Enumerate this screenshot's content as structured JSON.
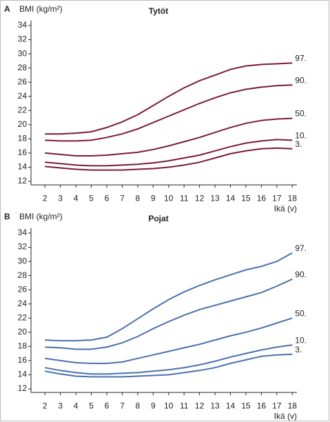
{
  "chart_data": [
    {
      "type": "line",
      "panel_label": "A",
      "title": "Tytöt",
      "ylabel": "BMI (kg/m²)",
      "xlabel": "Ikä (v)",
      "x": [
        2,
        3,
        4,
        5,
        6,
        7,
        8,
        9,
        10,
        11,
        12,
        13,
        14,
        15,
        16,
        17,
        18
      ],
      "xlim": [
        1.1,
        18.3
      ],
      "xticks": [
        2,
        3,
        4,
        5,
        6,
        7,
        8,
        9,
        10,
        11,
        12,
        13,
        14,
        15,
        16,
        17,
        18
      ],
      "ylim": [
        11.5,
        34.7
      ],
      "yticks": [
        12,
        14,
        16,
        18,
        20,
        22,
        24,
        26,
        28,
        30,
        32,
        34
      ],
      "grid": false,
      "series": [
        {
          "name": "97.",
          "color": "#7a1a33",
          "values": [
            18.7,
            18.7,
            18.8,
            19.0,
            19.6,
            20.4,
            21.4,
            22.7,
            24.0,
            25.2,
            26.2,
            27.0,
            27.8,
            28.3,
            28.5,
            28.6,
            28.7
          ]
        },
        {
          "name": "90.",
          "color": "#7a1a33",
          "values": [
            17.8,
            17.7,
            17.7,
            17.8,
            18.2,
            18.7,
            19.4,
            20.3,
            21.2,
            22.1,
            23.0,
            23.8,
            24.5,
            25.0,
            25.3,
            25.5,
            25.6
          ]
        },
        {
          "name": "50.",
          "color": "#7a1a33",
          "values": [
            16.0,
            15.8,
            15.6,
            15.6,
            15.7,
            15.9,
            16.1,
            16.5,
            17.0,
            17.6,
            18.2,
            18.9,
            19.6,
            20.2,
            20.6,
            20.8,
            20.9
          ]
        },
        {
          "name": "10.",
          "color": "#7a1a33",
          "values": [
            14.7,
            14.5,
            14.3,
            14.2,
            14.2,
            14.3,
            14.4,
            14.6,
            14.9,
            15.3,
            15.7,
            16.3,
            16.9,
            17.4,
            17.7,
            17.9,
            17.8
          ]
        },
        {
          "name": "3.",
          "color": "#7a1a33",
          "values": [
            14.1,
            13.9,
            13.7,
            13.6,
            13.6,
            13.6,
            13.7,
            13.8,
            14.0,
            14.3,
            14.7,
            15.3,
            15.9,
            16.3,
            16.6,
            16.7,
            16.6
          ]
        }
      ]
    },
    {
      "type": "line",
      "panel_label": "B",
      "title": "Pojat",
      "ylabel": "BMI (kg/m²)",
      "xlabel": "Ikä (v)",
      "x": [
        2,
        3,
        4,
        5,
        6,
        7,
        8,
        9,
        10,
        11,
        12,
        13,
        14,
        15,
        16,
        17,
        18
      ],
      "xlim": [
        1.1,
        18.3
      ],
      "xticks": [
        2,
        3,
        4,
        5,
        6,
        7,
        8,
        9,
        10,
        11,
        12,
        13,
        14,
        15,
        16,
        17,
        18
      ],
      "ylim": [
        11.5,
        34.7
      ],
      "yticks": [
        12,
        14,
        16,
        18,
        20,
        22,
        24,
        26,
        28,
        30,
        32,
        34
      ],
      "grid": false,
      "series": [
        {
          "name": "97.",
          "color": "#4a6fae",
          "values": [
            18.9,
            18.8,
            18.8,
            18.9,
            19.3,
            20.5,
            21.9,
            23.3,
            24.6,
            25.7,
            26.6,
            27.4,
            28.1,
            28.8,
            29.3,
            30.0,
            31.2
          ]
        },
        {
          "name": "90.",
          "color": "#4a6fae",
          "values": [
            17.9,
            17.8,
            17.6,
            17.6,
            17.9,
            18.5,
            19.4,
            20.5,
            21.5,
            22.4,
            23.2,
            23.8,
            24.4,
            25.0,
            25.6,
            26.5,
            27.5
          ]
        },
        {
          "name": "50.",
          "color": "#4a6fae",
          "values": [
            16.3,
            16.0,
            15.7,
            15.6,
            15.6,
            15.8,
            16.3,
            16.8,
            17.3,
            17.8,
            18.3,
            18.9,
            19.5,
            20.0,
            20.6,
            21.3,
            22.0
          ]
        },
        {
          "name": "10.",
          "color": "#4a6fae",
          "values": [
            15.0,
            14.6,
            14.3,
            14.1,
            14.1,
            14.2,
            14.3,
            14.5,
            14.7,
            15.0,
            15.4,
            15.9,
            16.5,
            17.0,
            17.5,
            17.9,
            18.2
          ]
        },
        {
          "name": "3.",
          "color": "#4a6fae",
          "values": [
            14.5,
            14.1,
            13.8,
            13.7,
            13.7,
            13.7,
            13.8,
            13.9,
            14.0,
            14.3,
            14.6,
            15.0,
            15.6,
            16.1,
            16.6,
            16.8,
            16.9
          ]
        }
      ]
    }
  ]
}
